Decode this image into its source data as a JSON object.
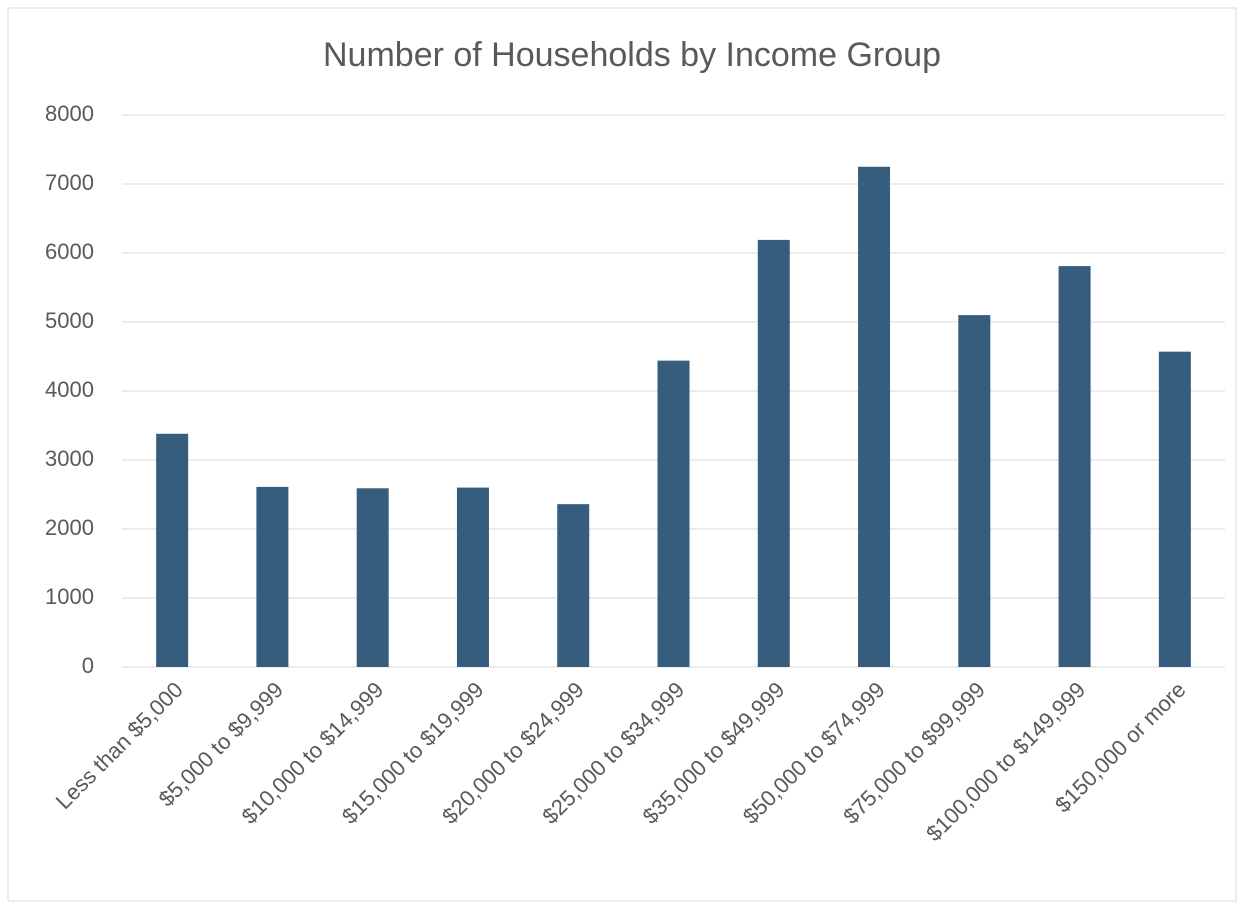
{
  "chart_data": {
    "type": "bar",
    "title": "Number of Households by Income Group",
    "categories": [
      "Less than $5,000",
      "$5,000 to $9,999",
      "$10,000 to $14,999",
      "$15,000 to $19,999",
      "$20,000 to $24,999",
      "$25,000 to $34,999",
      "$35,000 to $49,999",
      "$50,000 to $74,999",
      "$75,000 to $99,999",
      "$100,000 to $149,999",
      "$150,000 or more"
    ],
    "values": [
      3380,
      2610,
      2590,
      2600,
      2360,
      4440,
      6190,
      7250,
      5100,
      5810,
      4570
    ],
    "color": "#365d7e",
    "ylim": [
      0,
      8000
    ],
    "yticks": [
      0,
      1000,
      2000,
      3000,
      4000,
      5000,
      6000,
      7000,
      8000
    ],
    "grid": true
  }
}
